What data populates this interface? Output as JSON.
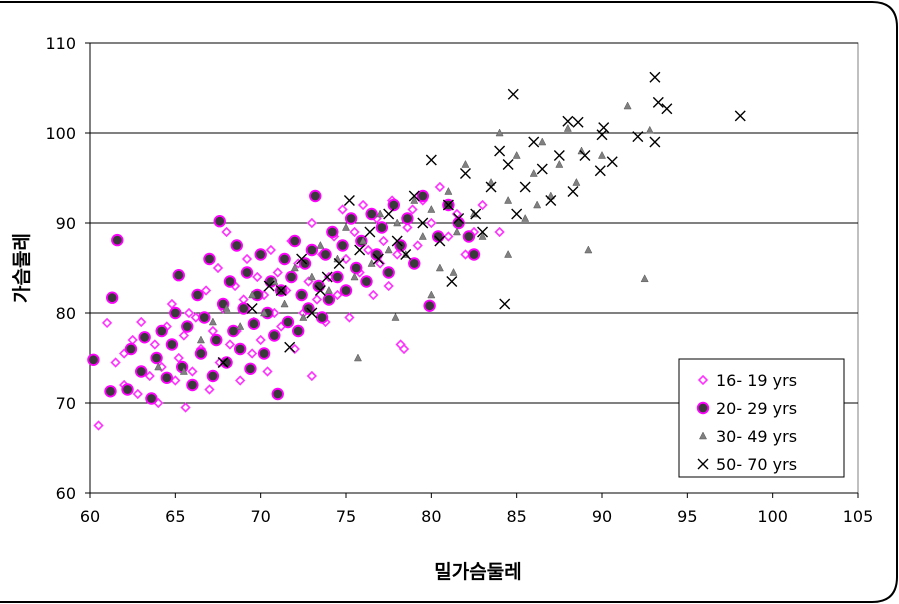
{
  "chart_data": {
    "type": "scatter",
    "title": "",
    "xlabel": "밀가슴둘레",
    "ylabel": "가슴둘레",
    "xlim": [
      60,
      105
    ],
    "ylim": [
      60,
      110
    ],
    "x_ticks": [
      60,
      65,
      70,
      75,
      80,
      85,
      90,
      95,
      100,
      105
    ],
    "y_ticks": [
      60,
      70,
      80,
      90,
      100,
      110
    ],
    "grid": "horizontal",
    "legend_position": "bottom-right",
    "series": [
      {
        "name": "16- 19 yrs",
        "marker": "diamond",
        "color": "#ff33ff",
        "points": [
          [
            60.5,
            67.5
          ],
          [
            61.0,
            78.9
          ],
          [
            61.5,
            74.5
          ],
          [
            62.0,
            72.0
          ],
          [
            62.0,
            75.5
          ],
          [
            62.5,
            77.0
          ],
          [
            62.8,
            71.0
          ],
          [
            63.0,
            79.0
          ],
          [
            63.5,
            73.0
          ],
          [
            63.8,
            76.5
          ],
          [
            64.0,
            70.0
          ],
          [
            64.2,
            74.0
          ],
          [
            64.5,
            78.5
          ],
          [
            64.8,
            81.0
          ],
          [
            65.0,
            72.5
          ],
          [
            65.2,
            75.0
          ],
          [
            65.5,
            77.5
          ],
          [
            65.6,
            69.5
          ],
          [
            65.8,
            80.0
          ],
          [
            66.0,
            73.5
          ],
          [
            66.2,
            79.5
          ],
          [
            66.5,
            76.0
          ],
          [
            66.8,
            82.5
          ],
          [
            67.0,
            71.5
          ],
          [
            67.2,
            78.0
          ],
          [
            67.5,
            85.0
          ],
          [
            67.6,
            74.5
          ],
          [
            67.8,
            80.5
          ],
          [
            68.0,
            89.0
          ],
          [
            68.2,
            76.5
          ],
          [
            68.5,
            83.0
          ],
          [
            68.6,
            78.0
          ],
          [
            68.8,
            72.5
          ],
          [
            69.0,
            81.5
          ],
          [
            69.2,
            86.0
          ],
          [
            69.5,
            75.5
          ],
          [
            69.6,
            79.0
          ],
          [
            69.8,
            84.0
          ],
          [
            70.0,
            77.0
          ],
          [
            70.2,
            82.0
          ],
          [
            70.4,
            73.5
          ],
          [
            70.6,
            87.0
          ],
          [
            70.8,
            80.0
          ],
          [
            71.0,
            84.5
          ],
          [
            71.2,
            78.5
          ],
          [
            71.5,
            82.5
          ],
          [
            71.8,
            88.0
          ],
          [
            72.0,
            76.0
          ],
          [
            72.2,
            85.5
          ],
          [
            72.5,
            80.0
          ],
          [
            72.8,
            83.5
          ],
          [
            73.0,
            90.0
          ],
          [
            73.0,
            73.0
          ],
          [
            73.3,
            81.5
          ],
          [
            73.6,
            86.5
          ],
          [
            73.8,
            79.0
          ],
          [
            74.0,
            84.0
          ],
          [
            74.3,
            88.5
          ],
          [
            74.5,
            82.0
          ],
          [
            74.8,
            91.5
          ],
          [
            75.0,
            86.0
          ],
          [
            75.2,
            79.5
          ],
          [
            75.5,
            89.0
          ],
          [
            75.8,
            84.5
          ],
          [
            76.0,
            92.0
          ],
          [
            76.3,
            87.0
          ],
          [
            76.6,
            82.0
          ],
          [
            76.8,
            90.5
          ],
          [
            77.0,
            85.5
          ],
          [
            77.2,
            88.0
          ],
          [
            77.5,
            83.0
          ],
          [
            77.7,
            92.5
          ],
          [
            78.0,
            86.5
          ],
          [
            78.2,
            76.5
          ],
          [
            78.4,
            76.0
          ],
          [
            78.6,
            89.5
          ],
          [
            78.9,
            91.5
          ],
          [
            79.2,
            87.5
          ],
          [
            79.5,
            92.5
          ],
          [
            80.0,
            90.0
          ],
          [
            80.5,
            94.0
          ],
          [
            81.0,
            88.5
          ],
          [
            81.5,
            91.0
          ],
          [
            82.0,
            86.5
          ],
          [
            82.5,
            89.0
          ],
          [
            83.0,
            92.0
          ],
          [
            84.0,
            89.0
          ]
        ]
      },
      {
        "name": "20- 29 yrs",
        "marker": "circle",
        "color": "#ff00ff",
        "points": [
          [
            60.2,
            74.8
          ],
          [
            61.2,
            71.3
          ],
          [
            61.3,
            81.7
          ],
          [
            61.6,
            88.1
          ],
          [
            62.2,
            71.5
          ],
          [
            62.4,
            76.0
          ],
          [
            63.0,
            73.5
          ],
          [
            63.2,
            77.3
          ],
          [
            63.6,
            70.5
          ],
          [
            63.9,
            75.0
          ],
          [
            64.2,
            78.0
          ],
          [
            64.5,
            72.8
          ],
          [
            64.8,
            76.5
          ],
          [
            65.0,
            80.0
          ],
          [
            65.2,
            84.2
          ],
          [
            65.4,
            74.0
          ],
          [
            65.7,
            78.5
          ],
          [
            66.0,
            72.0
          ],
          [
            66.3,
            82.0
          ],
          [
            66.5,
            75.5
          ],
          [
            66.7,
            79.5
          ],
          [
            67.0,
            86.0
          ],
          [
            67.2,
            73.0
          ],
          [
            67.4,
            77.0
          ],
          [
            67.6,
            90.2
          ],
          [
            67.8,
            81.0
          ],
          [
            68.0,
            74.5
          ],
          [
            68.2,
            83.5
          ],
          [
            68.4,
            78.0
          ],
          [
            68.6,
            87.5
          ],
          [
            68.8,
            76.0
          ],
          [
            69.0,
            80.5
          ],
          [
            69.2,
            84.5
          ],
          [
            69.4,
            73.8
          ],
          [
            69.6,
            78.8
          ],
          [
            69.8,
            82.0
          ],
          [
            70.0,
            86.5
          ],
          [
            70.2,
            75.5
          ],
          [
            70.4,
            80.0
          ],
          [
            70.6,
            83.5
          ],
          [
            70.8,
            77.5
          ],
          [
            71.0,
            71.0
          ],
          [
            71.2,
            82.5
          ],
          [
            71.4,
            86.0
          ],
          [
            71.6,
            79.0
          ],
          [
            71.8,
            84.0
          ],
          [
            72.0,
            88.0
          ],
          [
            72.2,
            78.0
          ],
          [
            72.4,
            82.0
          ],
          [
            72.6,
            85.5
          ],
          [
            72.8,
            80.5
          ],
          [
            73.0,
            87.0
          ],
          [
            73.2,
            93.0
          ],
          [
            73.4,
            83.0
          ],
          [
            73.6,
            79.5
          ],
          [
            73.8,
            86.5
          ],
          [
            74.0,
            81.5
          ],
          [
            74.2,
            89.0
          ],
          [
            74.5,
            84.0
          ],
          [
            74.8,
            87.5
          ],
          [
            75.0,
            82.5
          ],
          [
            75.3,
            90.5
          ],
          [
            75.6,
            85.0
          ],
          [
            75.9,
            88.0
          ],
          [
            76.2,
            83.5
          ],
          [
            76.5,
            91.0
          ],
          [
            76.8,
            86.5
          ],
          [
            77.1,
            89.5
          ],
          [
            77.5,
            84.5
          ],
          [
            77.8,
            92.0
          ],
          [
            78.2,
            87.5
          ],
          [
            78.6,
            90.5
          ],
          [
            79.0,
            85.5
          ],
          [
            79.5,
            93.0
          ],
          [
            79.9,
            80.8
          ],
          [
            80.4,
            88.5
          ],
          [
            81.0,
            92.0
          ],
          [
            81.6,
            90.0
          ],
          [
            82.2,
            88.5
          ],
          [
            82.5,
            86.5
          ]
        ]
      },
      {
        "name": "30- 49 yrs",
        "marker": "triangle",
        "color": "#808080",
        "points": [
          [
            64.0,
            74.0
          ],
          [
            65.5,
            73.5
          ],
          [
            66.5,
            77.0
          ],
          [
            67.2,
            79.0
          ],
          [
            68.0,
            80.5
          ],
          [
            68.8,
            78.5
          ],
          [
            69.5,
            82.0
          ],
          [
            70.2,
            80.0
          ],
          [
            70.8,
            83.5
          ],
          [
            71.4,
            81.0
          ],
          [
            72.0,
            85.0
          ],
          [
            72.5,
            79.5
          ],
          [
            73.0,
            84.0
          ],
          [
            73.5,
            87.5
          ],
          [
            74.0,
            82.5
          ],
          [
            74.5,
            86.0
          ],
          [
            75.0,
            89.5
          ],
          [
            75.5,
            84.0
          ],
          [
            75.7,
            75.0
          ],
          [
            76.0,
            88.0
          ],
          [
            76.5,
            85.5
          ],
          [
            77.0,
            91.0
          ],
          [
            77.5,
            87.0
          ],
          [
            77.9,
            79.5
          ],
          [
            78.0,
            90.0
          ],
          [
            78.5,
            86.5
          ],
          [
            79.0,
            92.5
          ],
          [
            79.5,
            88.5
          ],
          [
            80.0,
            91.5
          ],
          [
            80.5,
            85.0
          ],
          [
            81.0,
            93.5
          ],
          [
            81.5,
            89.0
          ],
          [
            82.0,
            96.5
          ],
          [
            82.5,
            91.0
          ],
          [
            83.0,
            88.5
          ],
          [
            83.5,
            94.5
          ],
          [
            84.0,
            100.0
          ],
          [
            84.5,
            92.5
          ],
          [
            85.0,
            97.5
          ],
          [
            85.5,
            90.5
          ],
          [
            86.0,
            95.5
          ],
          [
            86.5,
            99.0
          ],
          [
            87.0,
            93.0
          ],
          [
            87.5,
            96.5
          ],
          [
            88.0,
            100.5
          ],
          [
            88.5,
            94.5
          ],
          [
            88.8,
            98.0
          ],
          [
            89.2,
            87.0
          ],
          [
            90.0,
            97.5
          ],
          [
            91.5,
            103.0
          ],
          [
            92.5,
            83.8
          ],
          [
            92.8,
            100.3
          ],
          [
            80.0,
            82.0
          ],
          [
            81.3,
            84.5
          ],
          [
            84.5,
            86.5
          ],
          [
            86.2,
            92.0
          ]
        ]
      },
      {
        "name": "50- 70 yrs",
        "marker": "x",
        "color": "#000000",
        "points": [
          [
            67.8,
            74.5
          ],
          [
            69.5,
            80.5
          ],
          [
            70.5,
            83.0
          ],
          [
            71.2,
            82.5
          ],
          [
            71.7,
            76.2
          ],
          [
            72.4,
            86.0
          ],
          [
            73.0,
            80.0
          ],
          [
            73.5,
            82.5
          ],
          [
            73.9,
            84.0
          ],
          [
            74.6,
            85.5
          ],
          [
            75.2,
            92.5
          ],
          [
            75.8,
            87.0
          ],
          [
            76.4,
            89.0
          ],
          [
            76.9,
            86.0
          ],
          [
            77.5,
            91.0
          ],
          [
            78.0,
            88.0
          ],
          [
            78.5,
            86.5
          ],
          [
            79.0,
            93.0
          ],
          [
            79.5,
            90.0
          ],
          [
            80.0,
            97.0
          ],
          [
            80.5,
            88.0
          ],
          [
            81.0,
            92.0
          ],
          [
            81.2,
            83.5
          ],
          [
            81.6,
            90.5
          ],
          [
            82.0,
            95.5
          ],
          [
            82.6,
            91.0
          ],
          [
            83.0,
            89.0
          ],
          [
            83.5,
            94.0
          ],
          [
            84.0,
            98.0
          ],
          [
            84.3,
            81.0
          ],
          [
            84.5,
            96.5
          ],
          [
            84.8,
            104.3
          ],
          [
            85.0,
            91.0
          ],
          [
            85.5,
            94.0
          ],
          [
            86.0,
            99.0
          ],
          [
            86.5,
            96.0
          ],
          [
            87.0,
            92.5
          ],
          [
            87.5,
            97.5
          ],
          [
            88.0,
            101.3
          ],
          [
            88.3,
            93.5
          ],
          [
            88.6,
            101.2
          ],
          [
            89.0,
            97.5
          ],
          [
            89.9,
            95.8
          ],
          [
            90.0,
            99.8
          ],
          [
            90.1,
            100.6
          ],
          [
            90.6,
            96.8
          ],
          [
            92.1,
            99.6
          ],
          [
            93.1,
            106.2
          ],
          [
            93.1,
            99.0
          ],
          [
            93.3,
            103.4
          ],
          [
            93.8,
            102.7
          ],
          [
            98.1,
            101.9
          ]
        ]
      }
    ]
  }
}
